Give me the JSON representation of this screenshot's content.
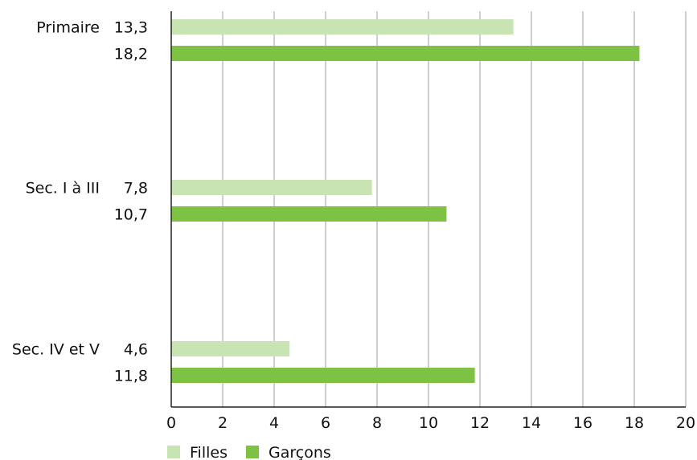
{
  "chart_data": {
    "type": "bar",
    "orientation": "horizontal",
    "categories": [
      "Primaire",
      "Sec. I à III",
      "Sec. IV et V"
    ],
    "series": [
      {
        "name": "Filles",
        "values": [
          13.3,
          7.8,
          4.6
        ],
        "labels": [
          "13,3",
          "7,8",
          "4,6"
        ],
        "color": "#c8e4b3"
      },
      {
        "name": "Garçons",
        "values": [
          18.2,
          10.7,
          11.8
        ],
        "labels": [
          "18,2",
          "10,7",
          "11,8"
        ],
        "color": "#7dc242"
      }
    ],
    "xlim": [
      0,
      20
    ],
    "xticks": [
      "0",
      "2",
      "4",
      "6",
      "8",
      "10",
      "12",
      "14",
      "16",
      "18",
      "20"
    ],
    "grid": true,
    "legend_position": "bottom-left"
  }
}
